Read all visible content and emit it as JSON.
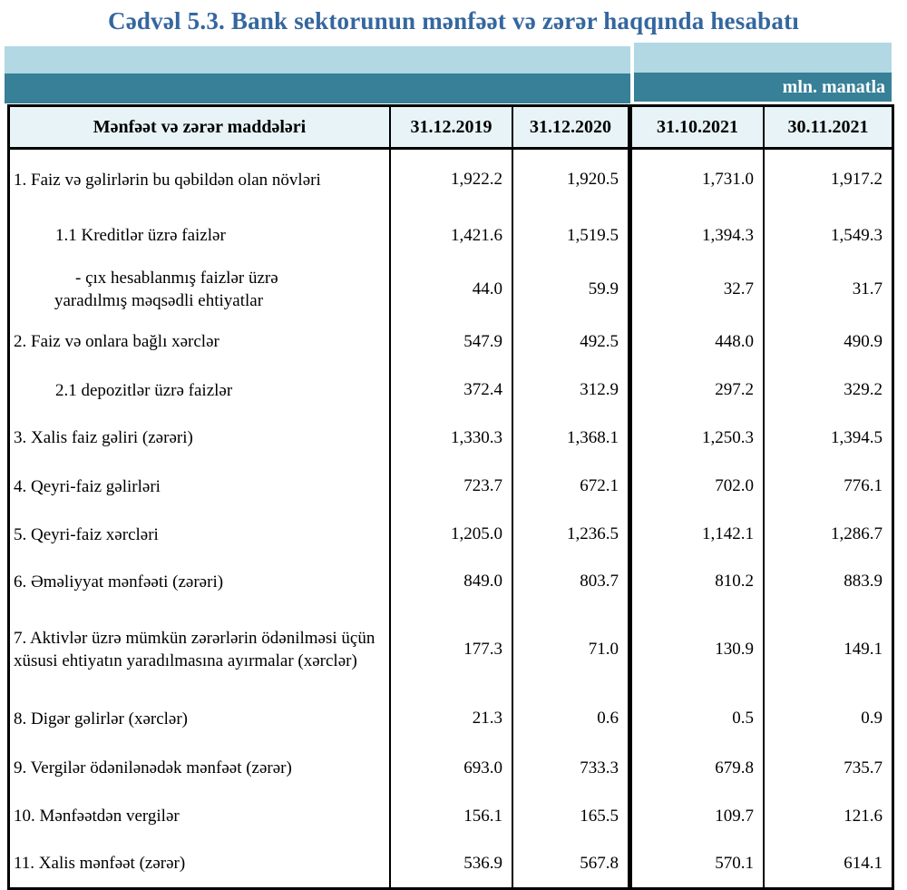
{
  "title": "Cədvəl 5.3. Bank sektorunun mənfəət və zərər haqqında hesabatı",
  "unit_label": "mln. manatla",
  "colors": {
    "title_blue": "#34679F",
    "band_light": "#B1D8E3",
    "band_teal": "#378097",
    "header_bg": "#E7F3F6",
    "border": "#000000"
  },
  "table": {
    "header": {
      "items_label": "Mənfəət və zərər maddələri",
      "dates": [
        "31.12.2019",
        "31.12.2020",
        "31.10.2021",
        "30.11.2021"
      ]
    },
    "rows": [
      {
        "label": "1. Faiz və gəlirlərin bu qəbildən olan növləri",
        "values": [
          "1,922.2",
          "1,920.5",
          "1,731.0",
          "1,917.2"
        ]
      },
      {
        "label": "1.1 Kreditlər üzrə faizlər",
        "values": [
          "1,421.6",
          "1,519.5",
          "1,394.3",
          "1,549.3"
        ]
      },
      {
        "label": "- çıx hesablanmış faizlər üzrə yaradılmış məqsədli ehtiyatlar",
        "values": [
          "44.0",
          "59.9",
          "32.7",
          "31.7"
        ]
      },
      {
        "label": "2. Faiz və onlara bağlı xərclər",
        "values": [
          "547.9",
          "492.5",
          "448.0",
          "490.9"
        ]
      },
      {
        "label": "2.1 depozitlər üzrə faizlər",
        "values": [
          "372.4",
          "312.9",
          "297.2",
          "329.2"
        ]
      },
      {
        "label": "3. Xalis faiz gəliri (zərəri)",
        "values": [
          "1,330.3",
          "1,368.1",
          "1,250.3",
          "1,394.5"
        ]
      },
      {
        "label": "4. Qeyri-faiz gəlirləri",
        "values": [
          "723.7",
          "672.1",
          "702.0",
          "776.1"
        ]
      },
      {
        "label": "5. Qeyri-faiz xərcləri",
        "values": [
          "1,205.0",
          "1,236.5",
          "1,142.1",
          "1,286.7"
        ]
      },
      {
        "label": "6. Əməliyyat mənfəəti (zərəri)",
        "values": [
          "849.0",
          "803.7",
          "810.2",
          "883.9"
        ]
      },
      {
        "label": "7. Aktivlər üzrə mümkün zərərlərin ödənilməsi üçün xüsusi ehtiyatın yaradılmasına ayırmalar (xərclər)",
        "values": [
          "177.3",
          "71.0",
          "130.9",
          "149.1"
        ]
      },
      {
        "label": "8. Digər gəlirlər (xərclər)",
        "values": [
          "21.3",
          "0.6",
          "0.5",
          "0.9"
        ]
      },
      {
        "label": "9. Vergilər ödənilənədək mənfəət (zərər)",
        "values": [
          "693.0",
          "733.3",
          "679.8",
          "735.7"
        ]
      },
      {
        "label": "10. Mənfəətdən vergilər",
        "values": [
          "156.1",
          "165.5",
          "109.7",
          "121.6"
        ]
      },
      {
        "label": "11. Xalis mənfəət (zərər)",
        "values": [
          "536.9",
          "567.8",
          "570.1",
          "614.1"
        ]
      }
    ]
  }
}
